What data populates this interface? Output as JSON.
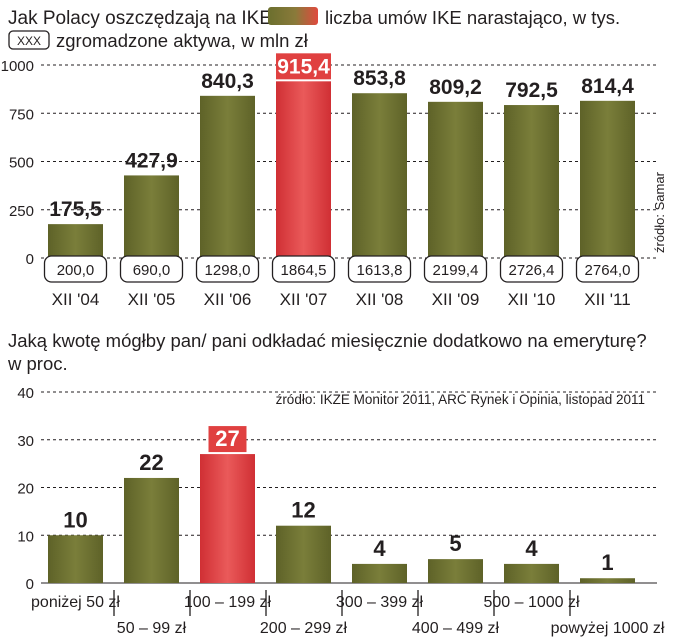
{
  "chart_data": [
    {
      "type": "bar",
      "title": "Jak Polacy oszczędzają na IKE",
      "legend": [
        {
          "marker": "gradient-bar",
          "label": "liczba umów IKE narastająco, w tys."
        },
        {
          "marker": "box",
          "box_text": "XXX",
          "label": "zgromadzone aktywa, w mln zł"
        }
      ],
      "categories": [
        "XII '04",
        "XII '05",
        "XII '06",
        "XII '07",
        "XII '08",
        "XII '09",
        "XII '10",
        "XII '11"
      ],
      "series": [
        {
          "name": "liczba umów IKE narastająco, w tys.",
          "values": [
            175.5,
            427.9,
            840.3,
            915.4,
            853.8,
            809.2,
            792.5,
            814.4
          ],
          "value_labels": [
            "175,5",
            "427,9",
            "840,3",
            "915,4",
            "853,8",
            "809,2",
            "792,5",
            "814,4"
          ]
        },
        {
          "name": "zgromadzone aktywa, w mln zł",
          "values": [
            200.0,
            690.0,
            1298.0,
            1864.5,
            1613.8,
            2199.4,
            2726.4,
            2764.0
          ],
          "value_labels": [
            "200,0",
            "690,0",
            "1298,0",
            "1864,5",
            "1613,8",
            "2199,4",
            "2726,4",
            "2764,0"
          ]
        }
      ],
      "highlight_index": 3,
      "ylim": [
        0,
        1000
      ],
      "yticks": [
        0,
        250,
        500,
        750,
        1000
      ],
      "ytick_labels": [
        "0",
        "250",
        "500",
        "750",
        "1000"
      ],
      "source": "źródło: Samar",
      "colors": {
        "bar": "#6b6f2e",
        "highlight": "#e04040",
        "axis_text": "#231f20"
      }
    },
    {
      "type": "bar",
      "title": "Jaką kwotę mógłby pan/ pani odkładać miesięcznie dodatkowo na emeryturę?",
      "subtitle": "w proc.",
      "categories": [
        "poniżej 50 zł",
        "50 – 99 zł",
        "100 – 199 zł",
        "200 – 299 zł",
        "300 – 399 zł",
        "400 – 499 zł",
        "500 – 1000 zł",
        "powyżej 1000 zł"
      ],
      "values": [
        10,
        22,
        27,
        12,
        4,
        5,
        4,
        1
      ],
      "highlight_index": 2,
      "ylim": [
        0,
        40
      ],
      "yticks": [
        0,
        10,
        20,
        30,
        40
      ],
      "source": "źródło: IKZE Monitor 2011, ARC Rynek i Opinia, listopad 2011",
      "colors": {
        "bar": "#6b6f2e",
        "highlight": "#e04040"
      }
    }
  ]
}
